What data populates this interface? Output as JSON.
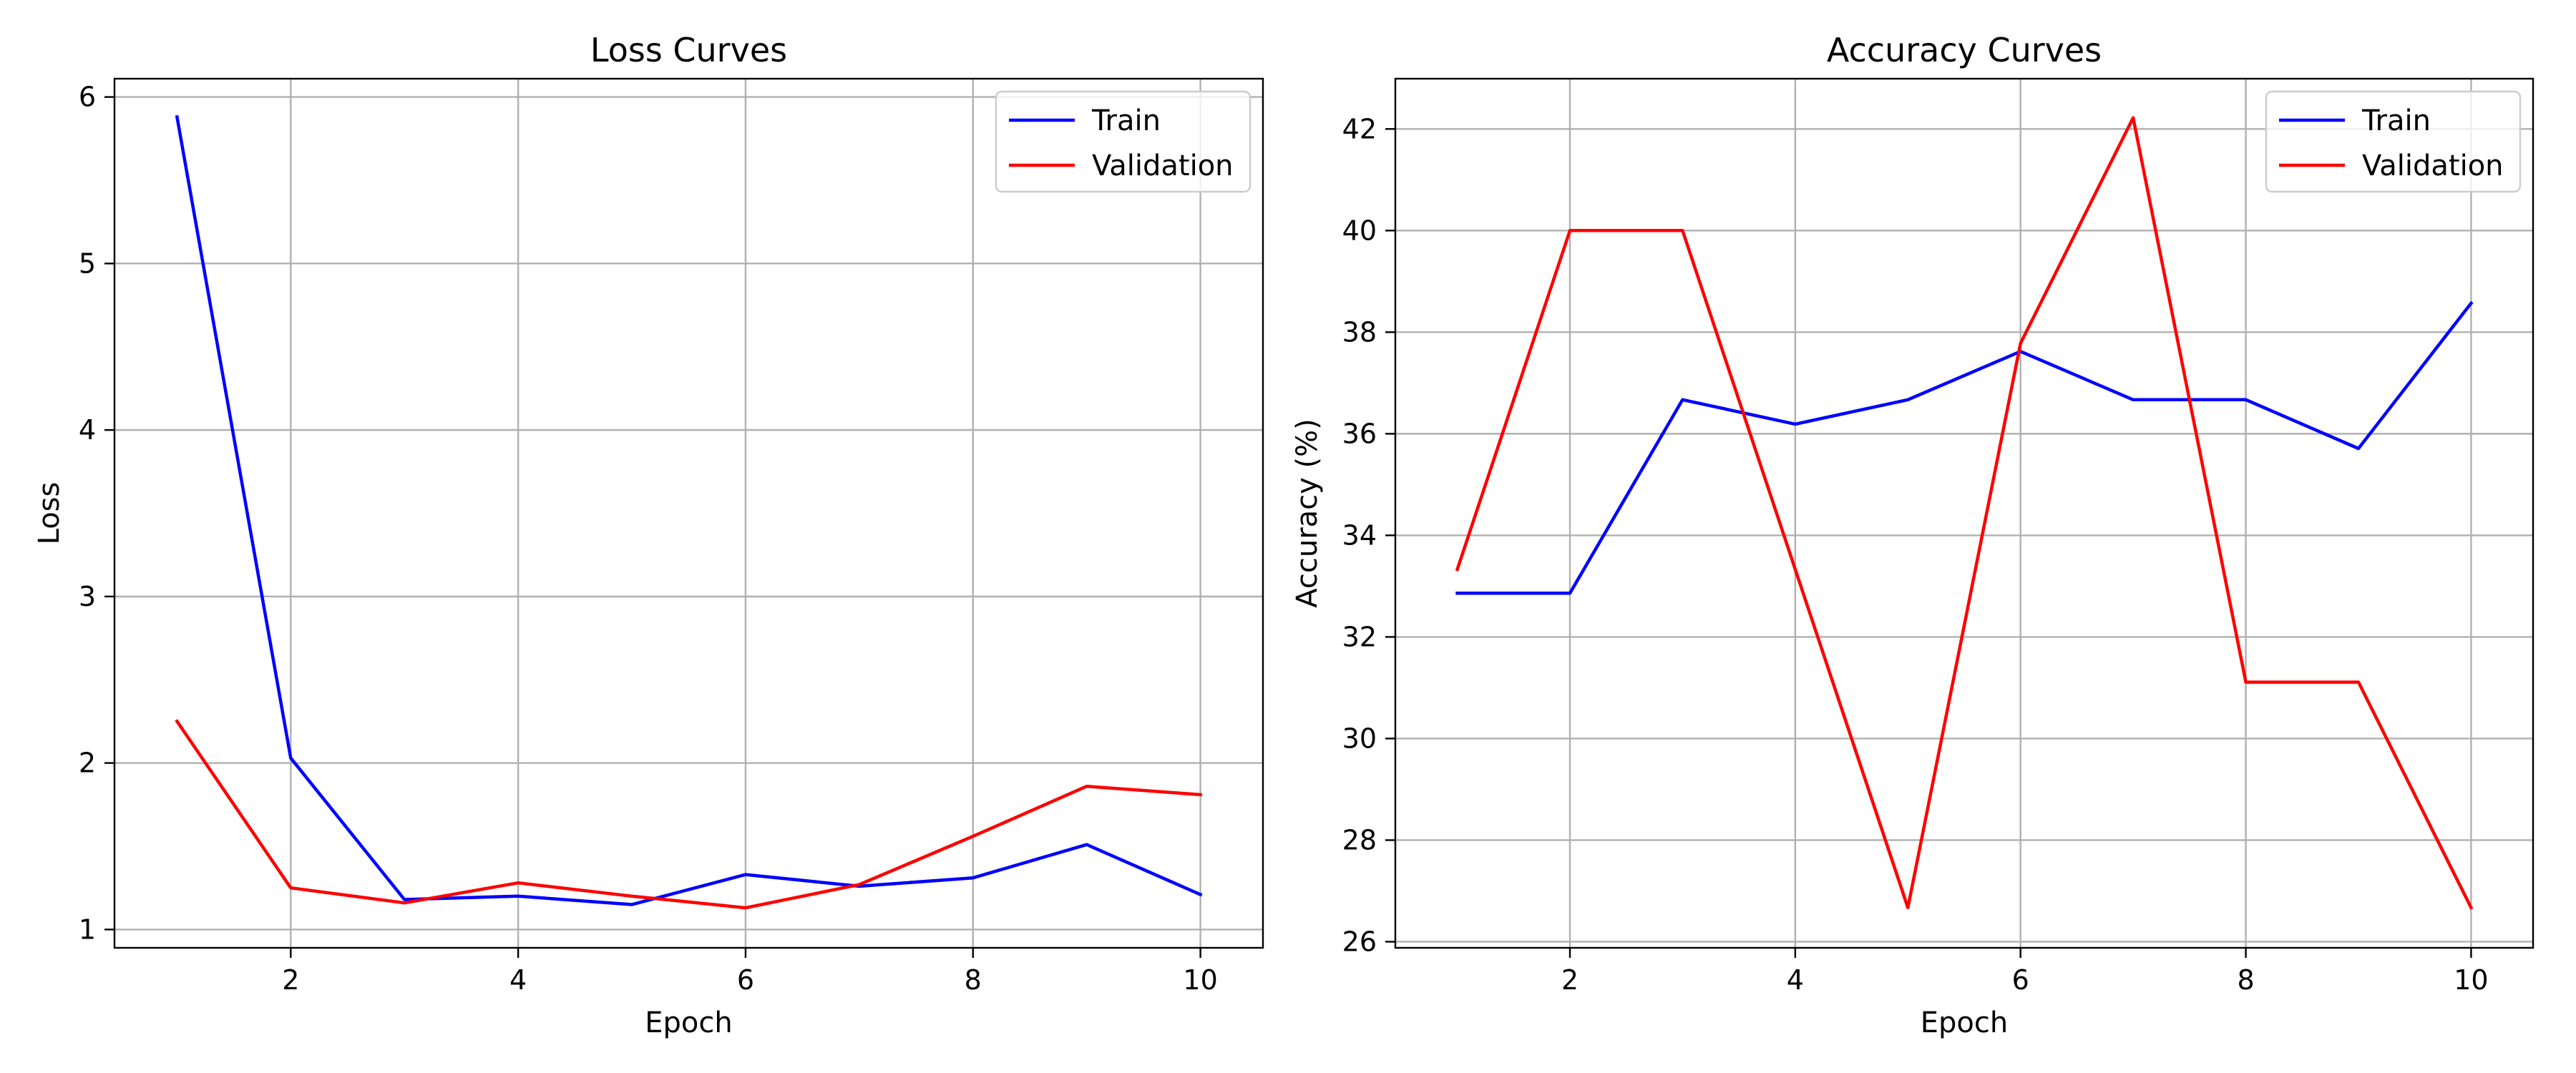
{
  "chart_data": [
    {
      "type": "line",
      "title": "Loss Curves",
      "xlabel": "Epoch",
      "ylabel": "Loss",
      "x": [
        1,
        2,
        3,
        4,
        5,
        6,
        7,
        8,
        9,
        10
      ],
      "xlim": [
        0.45,
        10.55
      ],
      "ylim": [
        0.89,
        6.11
      ],
      "xticks": [
        2,
        4,
        6,
        8,
        10
      ],
      "yticks": [
        1,
        2,
        3,
        4,
        5,
        6
      ],
      "grid": true,
      "legend_position": "top-right",
      "series": [
        {
          "name": "Train",
          "color": "#0000ff",
          "values": [
            5.88,
            2.03,
            1.18,
            1.2,
            1.15,
            1.33,
            1.26,
            1.31,
            1.51,
            1.21
          ]
        },
        {
          "name": "Validation",
          "color": "#ff0000",
          "values": [
            2.25,
            1.25,
            1.16,
            1.28,
            1.2,
            1.13,
            1.27,
            1.56,
            1.86,
            1.81
          ]
        }
      ]
    },
    {
      "type": "line",
      "title": "Accuracy Curves",
      "xlabel": "Epoch",
      "ylabel": "Accuracy (%)",
      "x": [
        1,
        2,
        3,
        4,
        5,
        6,
        7,
        8,
        9,
        10
      ],
      "xlim": [
        0.45,
        10.55
      ],
      "ylim": [
        25.88,
        42.99
      ],
      "xticks": [
        2,
        4,
        6,
        8,
        10
      ],
      "yticks": [
        26,
        28,
        30,
        32,
        34,
        36,
        38,
        40,
        42
      ],
      "grid": true,
      "legend_position": "top-right",
      "series": [
        {
          "name": "Train",
          "color": "#0000ff",
          "values": [
            32.86,
            32.86,
            36.67,
            36.19,
            36.67,
            37.62,
            36.67,
            36.67,
            35.71,
            38.57
          ]
        },
        {
          "name": "Validation",
          "color": "#ff0000",
          "values": [
            33.33,
            40.0,
            40.0,
            33.33,
            26.67,
            37.78,
            42.22,
            31.11,
            31.11,
            26.67
          ]
        }
      ]
    }
  ]
}
